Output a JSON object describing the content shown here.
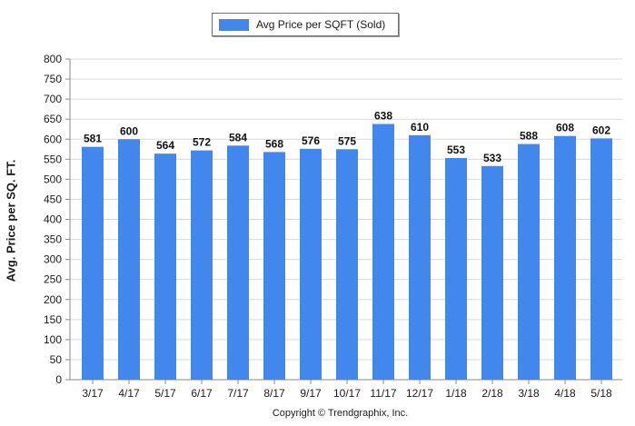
{
  "chart_data": {
    "type": "bar",
    "categories": [
      "3/17",
      "4/17",
      "5/17",
      "6/17",
      "7/17",
      "8/17",
      "9/17",
      "10/17",
      "11/17",
      "12/17",
      "1/18",
      "2/18",
      "3/18",
      "4/18",
      "5/18"
    ],
    "series": [
      {
        "name": "Avg Price per SQFT (Sold)",
        "values": [
          581,
          600,
          564,
          572,
          584,
          568,
          576,
          575,
          638,
          610,
          553,
          533,
          588,
          608,
          602
        ],
        "color": "#4287ed"
      }
    ],
    "xlabel": "",
    "ylabel": "Avg. Price per SQ. FT.",
    "ylim": [
      0,
      800
    ],
    "ytick_step": 50,
    "data_labels": true,
    "grid": true,
    "legend_position": "top-center"
  },
  "footer": {
    "copyright": "Copyright © Trendgraphix, Inc."
  }
}
